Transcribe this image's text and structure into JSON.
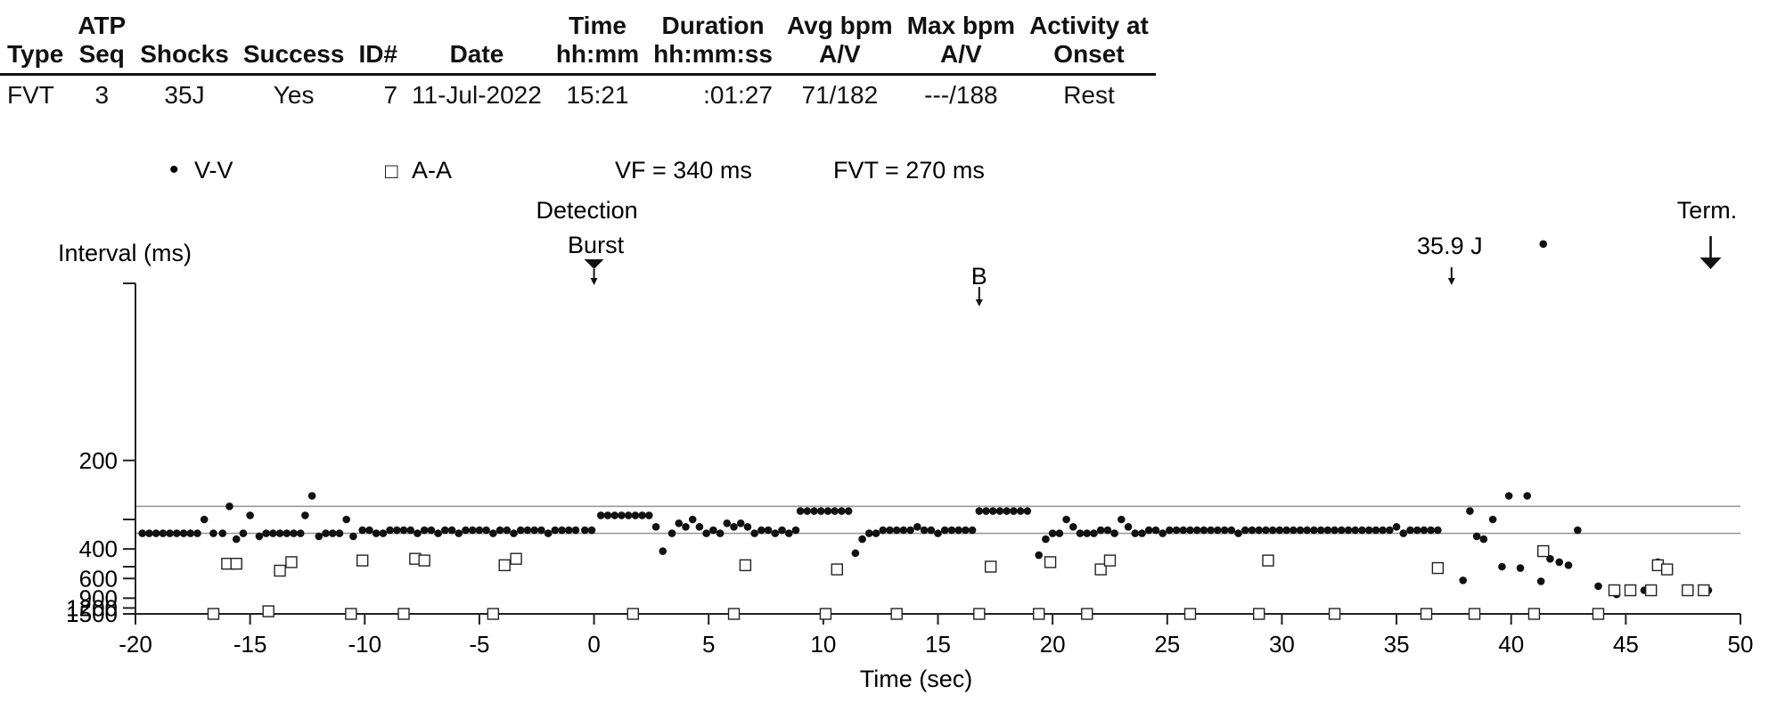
{
  "episode": {
    "headers": [
      {
        "line1": "Type",
        "line2": ""
      },
      {
        "line1": "ATP",
        "line2": "Seq"
      },
      {
        "line1": "Shocks",
        "line2": ""
      },
      {
        "line1": "Success",
        "line2": ""
      },
      {
        "line1": "ID#",
        "line2": ""
      },
      {
        "line1": "Date",
        "line2": ""
      },
      {
        "line1": "Time",
        "line2": "hh:mm"
      },
      {
        "line1": "Duration",
        "line2": "hh:mm:ss"
      },
      {
        "line1": "Avg bpm",
        "line2": "A/V"
      },
      {
        "line1": "Max bpm",
        "line2": "A/V"
      },
      {
        "line1": "Activity at",
        "line2": "Onset"
      }
    ],
    "row": [
      "FVT",
      "3",
      "35J",
      "Yes",
      "7",
      "11-Jul-2022",
      "15:21",
      ":01:27",
      "71/182",
      "---/188",
      "Rest"
    ]
  },
  "legend": {
    "vv_symbol": "•",
    "vv_label": "V-V",
    "aa_symbol": "□",
    "aa_label": "A-A",
    "vf_zone": "VF = 340 ms",
    "fvt_zone": "FVT = 270 ms"
  },
  "annotations": {
    "detection": "Detection",
    "burst": "Burst",
    "burst_marker": "B",
    "shock": "35.9 J",
    "term": "Term."
  },
  "chart_data": {
    "type": "scatter",
    "xlabel": "Time (sec)",
    "ylabel": "Interval (ms)",
    "xlim": [
      -20,
      50
    ],
    "x_ticks": [
      -20,
      -15,
      -10,
      -5,
      0,
      5,
      10,
      15,
      20,
      25,
      30,
      35,
      40,
      45,
      50
    ],
    "y_scale": "reciprocal",
    "ylim": [
      100,
      1500
    ],
    "y_ticks": [
      1500,
      1200,
      900,
      600,
      400,
      200
    ],
    "y_minor_ticks": [
      500,
      300,
      100
    ],
    "zone_lines_ms": [
      340,
      270
    ],
    "series": [
      {
        "name": "V-V",
        "marker": "dot",
        "points": [
          [
            -19.7,
            340
          ],
          [
            -19.4,
            340
          ],
          [
            -19.1,
            340
          ],
          [
            -18.8,
            340
          ],
          [
            -18.5,
            340
          ],
          [
            -18.2,
            340
          ],
          [
            -17.9,
            340
          ],
          [
            -17.6,
            340
          ],
          [
            -17.3,
            340
          ],
          [
            -17.0,
            300
          ],
          [
            -16.6,
            340
          ],
          [
            -16.2,
            340
          ],
          [
            -15.9,
            270
          ],
          [
            -15.6,
            360
          ],
          [
            -15.3,
            340
          ],
          [
            -15.0,
            290
          ],
          [
            -14.6,
            350
          ],
          [
            -14.3,
            340
          ],
          [
            -14.0,
            340
          ],
          [
            -13.7,
            340
          ],
          [
            -13.4,
            340
          ],
          [
            -13.1,
            340
          ],
          [
            -12.8,
            340
          ],
          [
            -12.6,
            290
          ],
          [
            -12.3,
            250
          ],
          [
            -12.0,
            350
          ],
          [
            -11.7,
            340
          ],
          [
            -11.4,
            340
          ],
          [
            -11.1,
            340
          ],
          [
            -10.8,
            300
          ],
          [
            -10.5,
            350
          ],
          [
            -10.1,
            330
          ],
          [
            -9.8,
            330
          ],
          [
            -9.5,
            340
          ],
          [
            -9.2,
            340
          ],
          [
            -8.9,
            330
          ],
          [
            -8.6,
            330
          ],
          [
            -8.3,
            330
          ],
          [
            -8.0,
            330
          ],
          [
            -7.7,
            340
          ],
          [
            -7.4,
            330
          ],
          [
            -7.1,
            330
          ],
          [
            -6.8,
            340
          ],
          [
            -6.5,
            330
          ],
          [
            -6.2,
            330
          ],
          [
            -5.9,
            340
          ],
          [
            -5.6,
            330
          ],
          [
            -5.3,
            330
          ],
          [
            -5.0,
            330
          ],
          [
            -4.7,
            330
          ],
          [
            -4.4,
            340
          ],
          [
            -4.1,
            330
          ],
          [
            -3.8,
            330
          ],
          [
            -3.5,
            340
          ],
          [
            -3.2,
            330
          ],
          [
            -2.9,
            330
          ],
          [
            -2.6,
            330
          ],
          [
            -2.3,
            330
          ],
          [
            -2.0,
            340
          ],
          [
            -1.7,
            330
          ],
          [
            -1.4,
            330
          ],
          [
            -1.1,
            330
          ],
          [
            -0.8,
            330
          ],
          [
            -0.4,
            330
          ],
          [
            -0.1,
            330
          ],
          [
            0.3,
            290
          ],
          [
            0.6,
            290
          ],
          [
            0.9,
            290
          ],
          [
            1.2,
            290
          ],
          [
            1.5,
            290
          ],
          [
            1.8,
            290
          ],
          [
            2.1,
            290
          ],
          [
            2.4,
            290
          ],
          [
            2.7,
            320
          ],
          [
            3.0,
            410
          ],
          [
            3.4,
            340
          ],
          [
            3.7,
            310
          ],
          [
            4.0,
            320
          ],
          [
            4.3,
            300
          ],
          [
            4.6,
            320
          ],
          [
            4.9,
            340
          ],
          [
            5.2,
            330
          ],
          [
            5.5,
            340
          ],
          [
            5.8,
            310
          ],
          [
            6.1,
            320
          ],
          [
            6.4,
            310
          ],
          [
            6.7,
            320
          ],
          [
            7.0,
            340
          ],
          [
            7.3,
            330
          ],
          [
            7.6,
            330
          ],
          [
            7.9,
            340
          ],
          [
            8.2,
            330
          ],
          [
            8.5,
            340
          ],
          [
            8.8,
            330
          ],
          [
            9.0,
            280
          ],
          [
            9.3,
            280
          ],
          [
            9.6,
            280
          ],
          [
            9.9,
            280
          ],
          [
            10.2,
            280
          ],
          [
            10.5,
            280
          ],
          [
            10.8,
            280
          ],
          [
            11.1,
            280
          ],
          [
            11.4,
            420
          ],
          [
            11.7,
            360
          ],
          [
            12.0,
            340
          ],
          [
            12.3,
            340
          ],
          [
            12.6,
            330
          ],
          [
            12.9,
            330
          ],
          [
            13.2,
            330
          ],
          [
            13.5,
            330
          ],
          [
            13.8,
            330
          ],
          [
            14.1,
            320
          ],
          [
            14.4,
            330
          ],
          [
            14.7,
            330
          ],
          [
            15.0,
            340
          ],
          [
            15.3,
            330
          ],
          [
            15.6,
            330
          ],
          [
            15.9,
            330
          ],
          [
            16.2,
            330
          ],
          [
            16.5,
            330
          ],
          [
            16.8,
            280
          ],
          [
            17.1,
            280
          ],
          [
            17.4,
            280
          ],
          [
            17.7,
            280
          ],
          [
            18.0,
            280
          ],
          [
            18.3,
            280
          ],
          [
            18.6,
            280
          ],
          [
            18.9,
            280
          ],
          [
            19.4,
            430
          ],
          [
            19.7,
            360
          ],
          [
            20.0,
            340
          ],
          [
            20.3,
            340
          ],
          [
            20.6,
            300
          ],
          [
            20.9,
            320
          ],
          [
            21.2,
            340
          ],
          [
            21.5,
            340
          ],
          [
            21.8,
            340
          ],
          [
            22.1,
            330
          ],
          [
            22.4,
            330
          ],
          [
            22.7,
            340
          ],
          [
            23.0,
            300
          ],
          [
            23.3,
            320
          ],
          [
            23.6,
            340
          ],
          [
            23.9,
            340
          ],
          [
            24.2,
            330
          ],
          [
            24.5,
            330
          ],
          [
            24.8,
            340
          ],
          [
            25.1,
            330
          ],
          [
            25.4,
            330
          ],
          [
            25.7,
            330
          ],
          [
            26.0,
            330
          ],
          [
            26.3,
            330
          ],
          [
            26.6,
            330
          ],
          [
            26.9,
            330
          ],
          [
            27.2,
            330
          ],
          [
            27.5,
            330
          ],
          [
            27.8,
            330
          ],
          [
            28.1,
            340
          ],
          [
            28.4,
            330
          ],
          [
            28.7,
            330
          ],
          [
            29.0,
            330
          ],
          [
            29.3,
            330
          ],
          [
            29.6,
            330
          ],
          [
            29.9,
            330
          ],
          [
            30.2,
            330
          ],
          [
            30.5,
            330
          ],
          [
            30.8,
            330
          ],
          [
            31.1,
            330
          ],
          [
            31.4,
            330
          ],
          [
            31.7,
            330
          ],
          [
            32.0,
            330
          ],
          [
            32.3,
            330
          ],
          [
            32.6,
            330
          ],
          [
            32.9,
            330
          ],
          [
            33.2,
            330
          ],
          [
            33.5,
            330
          ],
          [
            33.8,
            330
          ],
          [
            34.1,
            330
          ],
          [
            34.4,
            330
          ],
          [
            34.7,
            330
          ],
          [
            35.0,
            320
          ],
          [
            35.3,
            340
          ],
          [
            35.6,
            330
          ],
          [
            35.9,
            330
          ],
          [
            36.2,
            330
          ],
          [
            36.5,
            330
          ],
          [
            36.8,
            330
          ],
          [
            37.9,
            620
          ],
          [
            38.2,
            280
          ],
          [
            38.5,
            350
          ],
          [
            38.8,
            360
          ],
          [
            39.2,
            300
          ],
          [
            39.6,
            500
          ],
          [
            39.9,
            250
          ],
          [
            40.4,
            510
          ],
          [
            40.7,
            250
          ],
          [
            41.3,
            630
          ],
          [
            41.4,
            90
          ],
          [
            41.7,
            450
          ],
          [
            42.1,
            470
          ],
          [
            42.5,
            490
          ],
          [
            42.9,
            330
          ],
          [
            43.8,
            690
          ],
          [
            44.6,
            820
          ],
          [
            45.2,
            750
          ],
          [
            45.8,
            750
          ],
          [
            46.4,
            470
          ],
          [
            46.9,
            520
          ],
          [
            47.8,
            760
          ],
          [
            48.6,
            750
          ]
        ]
      },
      {
        "name": "A-A",
        "marker": "square",
        "points": [
          [
            -16.6,
            1500
          ],
          [
            -16.0,
            480
          ],
          [
            -15.6,
            480
          ],
          [
            -14.2,
            1350
          ],
          [
            -13.7,
            530
          ],
          [
            -13.2,
            470
          ],
          [
            -10.6,
            1500
          ],
          [
            -10.1,
            460
          ],
          [
            -8.3,
            1500
          ],
          [
            -7.8,
            450
          ],
          [
            -7.4,
            460
          ],
          [
            -4.4,
            1500
          ],
          [
            -3.9,
            490
          ],
          [
            -3.4,
            450
          ],
          [
            1.7,
            1500
          ],
          [
            6.1,
            1500
          ],
          [
            6.6,
            490
          ],
          [
            10.1,
            1500
          ],
          [
            10.6,
            520
          ],
          [
            13.2,
            1500
          ],
          [
            16.8,
            1500
          ],
          [
            17.3,
            500
          ],
          [
            19.4,
            1500
          ],
          [
            19.9,
            470
          ],
          [
            21.5,
            1500
          ],
          [
            22.1,
            520
          ],
          [
            22.5,
            460
          ],
          [
            26.0,
            1500
          ],
          [
            29.0,
            1500
          ],
          [
            29.4,
            460
          ],
          [
            32.3,
            1500
          ],
          [
            36.3,
            1500
          ],
          [
            36.8,
            510
          ],
          [
            38.4,
            1500
          ],
          [
            41.0,
            1500
          ],
          [
            41.4,
            410
          ],
          [
            43.8,
            1500
          ],
          [
            44.5,
            750
          ],
          [
            45.2,
            750
          ],
          [
            46.1,
            750
          ],
          [
            46.4,
            490
          ],
          [
            46.8,
            520
          ],
          [
            47.7,
            750
          ],
          [
            48.4,
            750
          ]
        ]
      }
    ],
    "events": [
      {
        "name": "Detection",
        "x": 0
      },
      {
        "name": "Burst",
        "x": 0
      },
      {
        "name": "B",
        "x": 16.8
      },
      {
        "name": "35.9 J",
        "x": 37.4
      },
      {
        "name": "Term.",
        "x": 48.7
      }
    ]
  }
}
